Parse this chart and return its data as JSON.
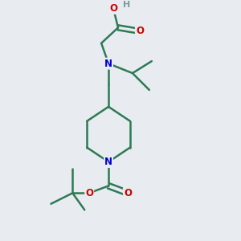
{
  "background_color": "#e8ecf0",
  "atom_color_C": "#2d7a55",
  "atom_color_N": "#0000cc",
  "atom_color_O": "#cc0000",
  "atom_color_H": "#7a9a9a",
  "bond_color": "#2d7a55",
  "line_width": 1.8,
  "figsize": [
    3.0,
    3.0
  ],
  "dpi": 100,
  "xlim": [
    0,
    10
  ],
  "ylim": [
    0,
    10
  ]
}
